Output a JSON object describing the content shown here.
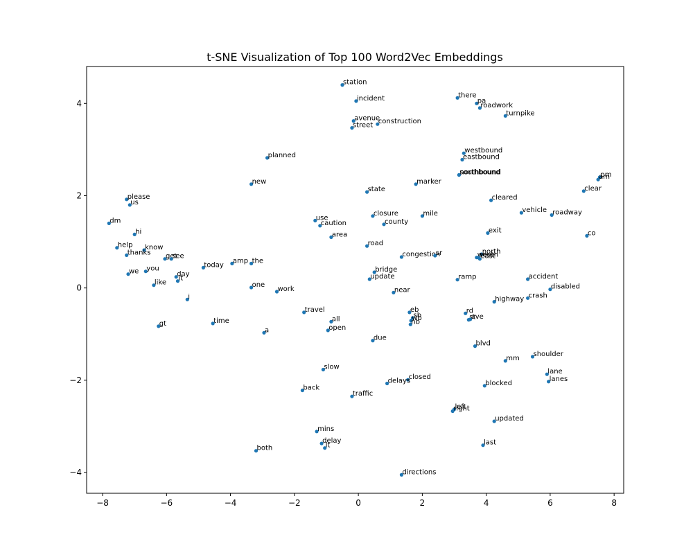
{
  "chart_data": {
    "type": "scatter",
    "title": "t-SNE Visualization of Top 100 Word2Vec Embeddings",
    "xlabel": "",
    "ylabel": "",
    "xlim": [
      -8.5,
      8.3
    ],
    "ylim": [
      -4.45,
      4.8
    ],
    "xticks": [
      -8,
      -6,
      -4,
      -2,
      0,
      2,
      4,
      6,
      8
    ],
    "yticks": [
      -4,
      -2,
      0,
      2,
      4
    ],
    "grid": false,
    "marker_color": "#1f77b4",
    "points": [
      {
        "label": "station",
        "x": -0.5,
        "y": 4.4
      },
      {
        "label": "incident",
        "x": -0.07,
        "y": 4.05
      },
      {
        "label": "avenue",
        "x": -0.15,
        "y": 3.62
      },
      {
        "label": "street",
        "x": -0.2,
        "y": 3.47
      },
      {
        "label": "construction",
        "x": 0.6,
        "y": 3.55
      },
      {
        "label": "there",
        "x": 3.1,
        "y": 4.12
      },
      {
        "label": "pa",
        "x": 3.7,
        "y": 4.0
      },
      {
        "label": "roadwork",
        "x": 3.8,
        "y": 3.9
      },
      {
        "label": "turnpike",
        "x": 4.6,
        "y": 3.73
      },
      {
        "label": "planned",
        "x": -2.85,
        "y": 2.82
      },
      {
        "label": "westbound",
        "x": 3.3,
        "y": 2.92
      },
      {
        "label": "eastbound",
        "x": 3.25,
        "y": 2.78
      },
      {
        "label": "southbound",
        "x": 3.15,
        "y": 2.45
      },
      {
        "label": "northbound",
        "x": 3.15,
        "y": 2.45
      },
      {
        "label": "new",
        "x": -3.35,
        "y": 2.25
      },
      {
        "label": "state",
        "x": 0.27,
        "y": 2.08
      },
      {
        "label": "marker",
        "x": 1.8,
        "y": 2.25
      },
      {
        "label": "pm",
        "x": 7.55,
        "y": 2.4
      },
      {
        "label": "am",
        "x": 7.5,
        "y": 2.35
      },
      {
        "label": "clear",
        "x": 7.05,
        "y": 2.1
      },
      {
        "label": "please",
        "x": -7.25,
        "y": 1.92
      },
      {
        "label": "us",
        "x": -7.15,
        "y": 1.8
      },
      {
        "label": "cleared",
        "x": 4.15,
        "y": 1.9
      },
      {
        "label": "vehicle",
        "x": 5.1,
        "y": 1.63
      },
      {
        "label": "roadway",
        "x": 6.05,
        "y": 1.58
      },
      {
        "label": "dm",
        "x": -7.8,
        "y": 1.4
      },
      {
        "label": "use",
        "x": -1.35,
        "y": 1.46
      },
      {
        "label": "caution",
        "x": -1.2,
        "y": 1.35
      },
      {
        "label": "closure",
        "x": 0.45,
        "y": 1.56
      },
      {
        "label": "mile",
        "x": 2.0,
        "y": 1.56
      },
      {
        "label": "county",
        "x": 0.8,
        "y": 1.38
      },
      {
        "label": "hi",
        "x": -7.0,
        "y": 1.16
      },
      {
        "label": "area",
        "x": -0.85,
        "y": 1.1
      },
      {
        "label": "exit",
        "x": 4.05,
        "y": 1.19
      },
      {
        "label": "co",
        "x": 7.15,
        "y": 1.13
      },
      {
        "label": "help",
        "x": -7.55,
        "y": 0.87
      },
      {
        "label": "know",
        "x": -6.7,
        "y": 0.82
      },
      {
        "label": "road",
        "x": 0.27,
        "y": 0.91
      },
      {
        "label": "thanks",
        "x": -7.25,
        "y": 0.71
      },
      {
        "label": "get",
        "x": -6.05,
        "y": 0.63
      },
      {
        "label": "see",
        "x": -5.85,
        "y": 0.63
      },
      {
        "label": "congestion",
        "x": 1.35,
        "y": 0.67
      },
      {
        "label": "sr",
        "x": 2.4,
        "y": 0.7
      },
      {
        "label": "north",
        "x": 3.85,
        "y": 0.73
      },
      {
        "label": "west",
        "x": 3.7,
        "y": 0.66
      },
      {
        "label": "east",
        "x": 3.8,
        "y": 0.63
      },
      {
        "label": "south",
        "x": 3.75,
        "y": 0.66
      },
      {
        "label": "today",
        "x": -4.85,
        "y": 0.44
      },
      {
        "label": "amp",
        "x": -3.95,
        "y": 0.53
      },
      {
        "label": "the",
        "x": -3.35,
        "y": 0.53
      },
      {
        "label": "you",
        "x": -6.65,
        "y": 0.36
      },
      {
        "label": "we",
        "x": -7.2,
        "y": 0.3
      },
      {
        "label": "bridge",
        "x": 0.5,
        "y": 0.34
      },
      {
        "label": "update",
        "x": 0.35,
        "y": 0.19
      },
      {
        "label": "ramp",
        "x": 3.1,
        "y": 0.18
      },
      {
        "label": "accident",
        "x": 5.3,
        "y": 0.19
      },
      {
        "label": "day",
        "x": -5.7,
        "y": 0.24
      },
      {
        "label": "it",
        "x": -5.65,
        "y": 0.15
      },
      {
        "label": "like",
        "x": -6.4,
        "y": 0.06
      },
      {
        "label": "one",
        "x": -3.35,
        "y": 0.01
      },
      {
        "label": "work",
        "x": -2.55,
        "y": -0.08
      },
      {
        "label": "near",
        "x": 1.1,
        "y": -0.1
      },
      {
        "label": "disabled",
        "x": 6.0,
        "y": -0.03
      },
      {
        "label": "crash",
        "x": 5.3,
        "y": -0.22
      },
      {
        "label": "highway",
        "x": 4.25,
        "y": -0.3
      },
      {
        "label": "i",
        "x": -5.35,
        "y": -0.25
      },
      {
        "label": "travel",
        "x": -1.7,
        "y": -0.53
      },
      {
        "label": "eb",
        "x": 1.6,
        "y": -0.53
      },
      {
        "label": "rd",
        "x": 3.35,
        "y": -0.55
      },
      {
        "label": "sb",
        "x": 1.7,
        "y": -0.65
      },
      {
        "label": "wb",
        "x": 1.65,
        "y": -0.71
      },
      {
        "label": "st",
        "x": 3.45,
        "y": -0.69
      },
      {
        "label": "ave",
        "x": 3.5,
        "y": -0.68
      },
      {
        "label": "nb",
        "x": 1.63,
        "y": -0.79
      },
      {
        "label": "all",
        "x": -0.85,
        "y": -0.73
      },
      {
        "label": "time",
        "x": -4.55,
        "y": -0.77
      },
      {
        "label": "gt",
        "x": -6.25,
        "y": -0.83
      },
      {
        "label": "open",
        "x": -0.95,
        "y": -0.92
      },
      {
        "label": "a",
        "x": -2.95,
        "y": -0.97
      },
      {
        "label": "due",
        "x": 0.45,
        "y": -1.14
      },
      {
        "label": "blvd",
        "x": 3.65,
        "y": -1.26
      },
      {
        "label": "shoulder",
        "x": 5.45,
        "y": -1.49
      },
      {
        "label": "mm",
        "x": 4.6,
        "y": -1.58
      },
      {
        "label": "slow",
        "x": -1.1,
        "y": -1.77
      },
      {
        "label": "lane",
        "x": 5.9,
        "y": -1.87
      },
      {
        "label": "lanes",
        "x": 5.95,
        "y": -2.03
      },
      {
        "label": "closed",
        "x": 1.55,
        "y": -1.99
      },
      {
        "label": "delays",
        "x": 0.9,
        "y": -2.07
      },
      {
        "label": "blocked",
        "x": 3.95,
        "y": -2.12
      },
      {
        "label": "back",
        "x": -1.75,
        "y": -2.22
      },
      {
        "label": "traffic",
        "x": -0.2,
        "y": -2.35
      },
      {
        "label": "left",
        "x": 3.0,
        "y": -2.63
      },
      {
        "label": "right",
        "x": 2.95,
        "y": -2.67
      },
      {
        "label": "updated",
        "x": 4.25,
        "y": -2.89
      },
      {
        "label": "mins",
        "x": -1.3,
        "y": -3.11
      },
      {
        "label": "delay",
        "x": -1.15,
        "y": -3.37
      },
      {
        "label": "lt",
        "x": -1.05,
        "y": -3.47
      },
      {
        "label": "last",
        "x": 3.9,
        "y": -3.41
      },
      {
        "label": "both",
        "x": -3.2,
        "y": -3.53
      },
      {
        "label": "directions",
        "x": 1.35,
        "y": -4.05
      }
    ]
  }
}
